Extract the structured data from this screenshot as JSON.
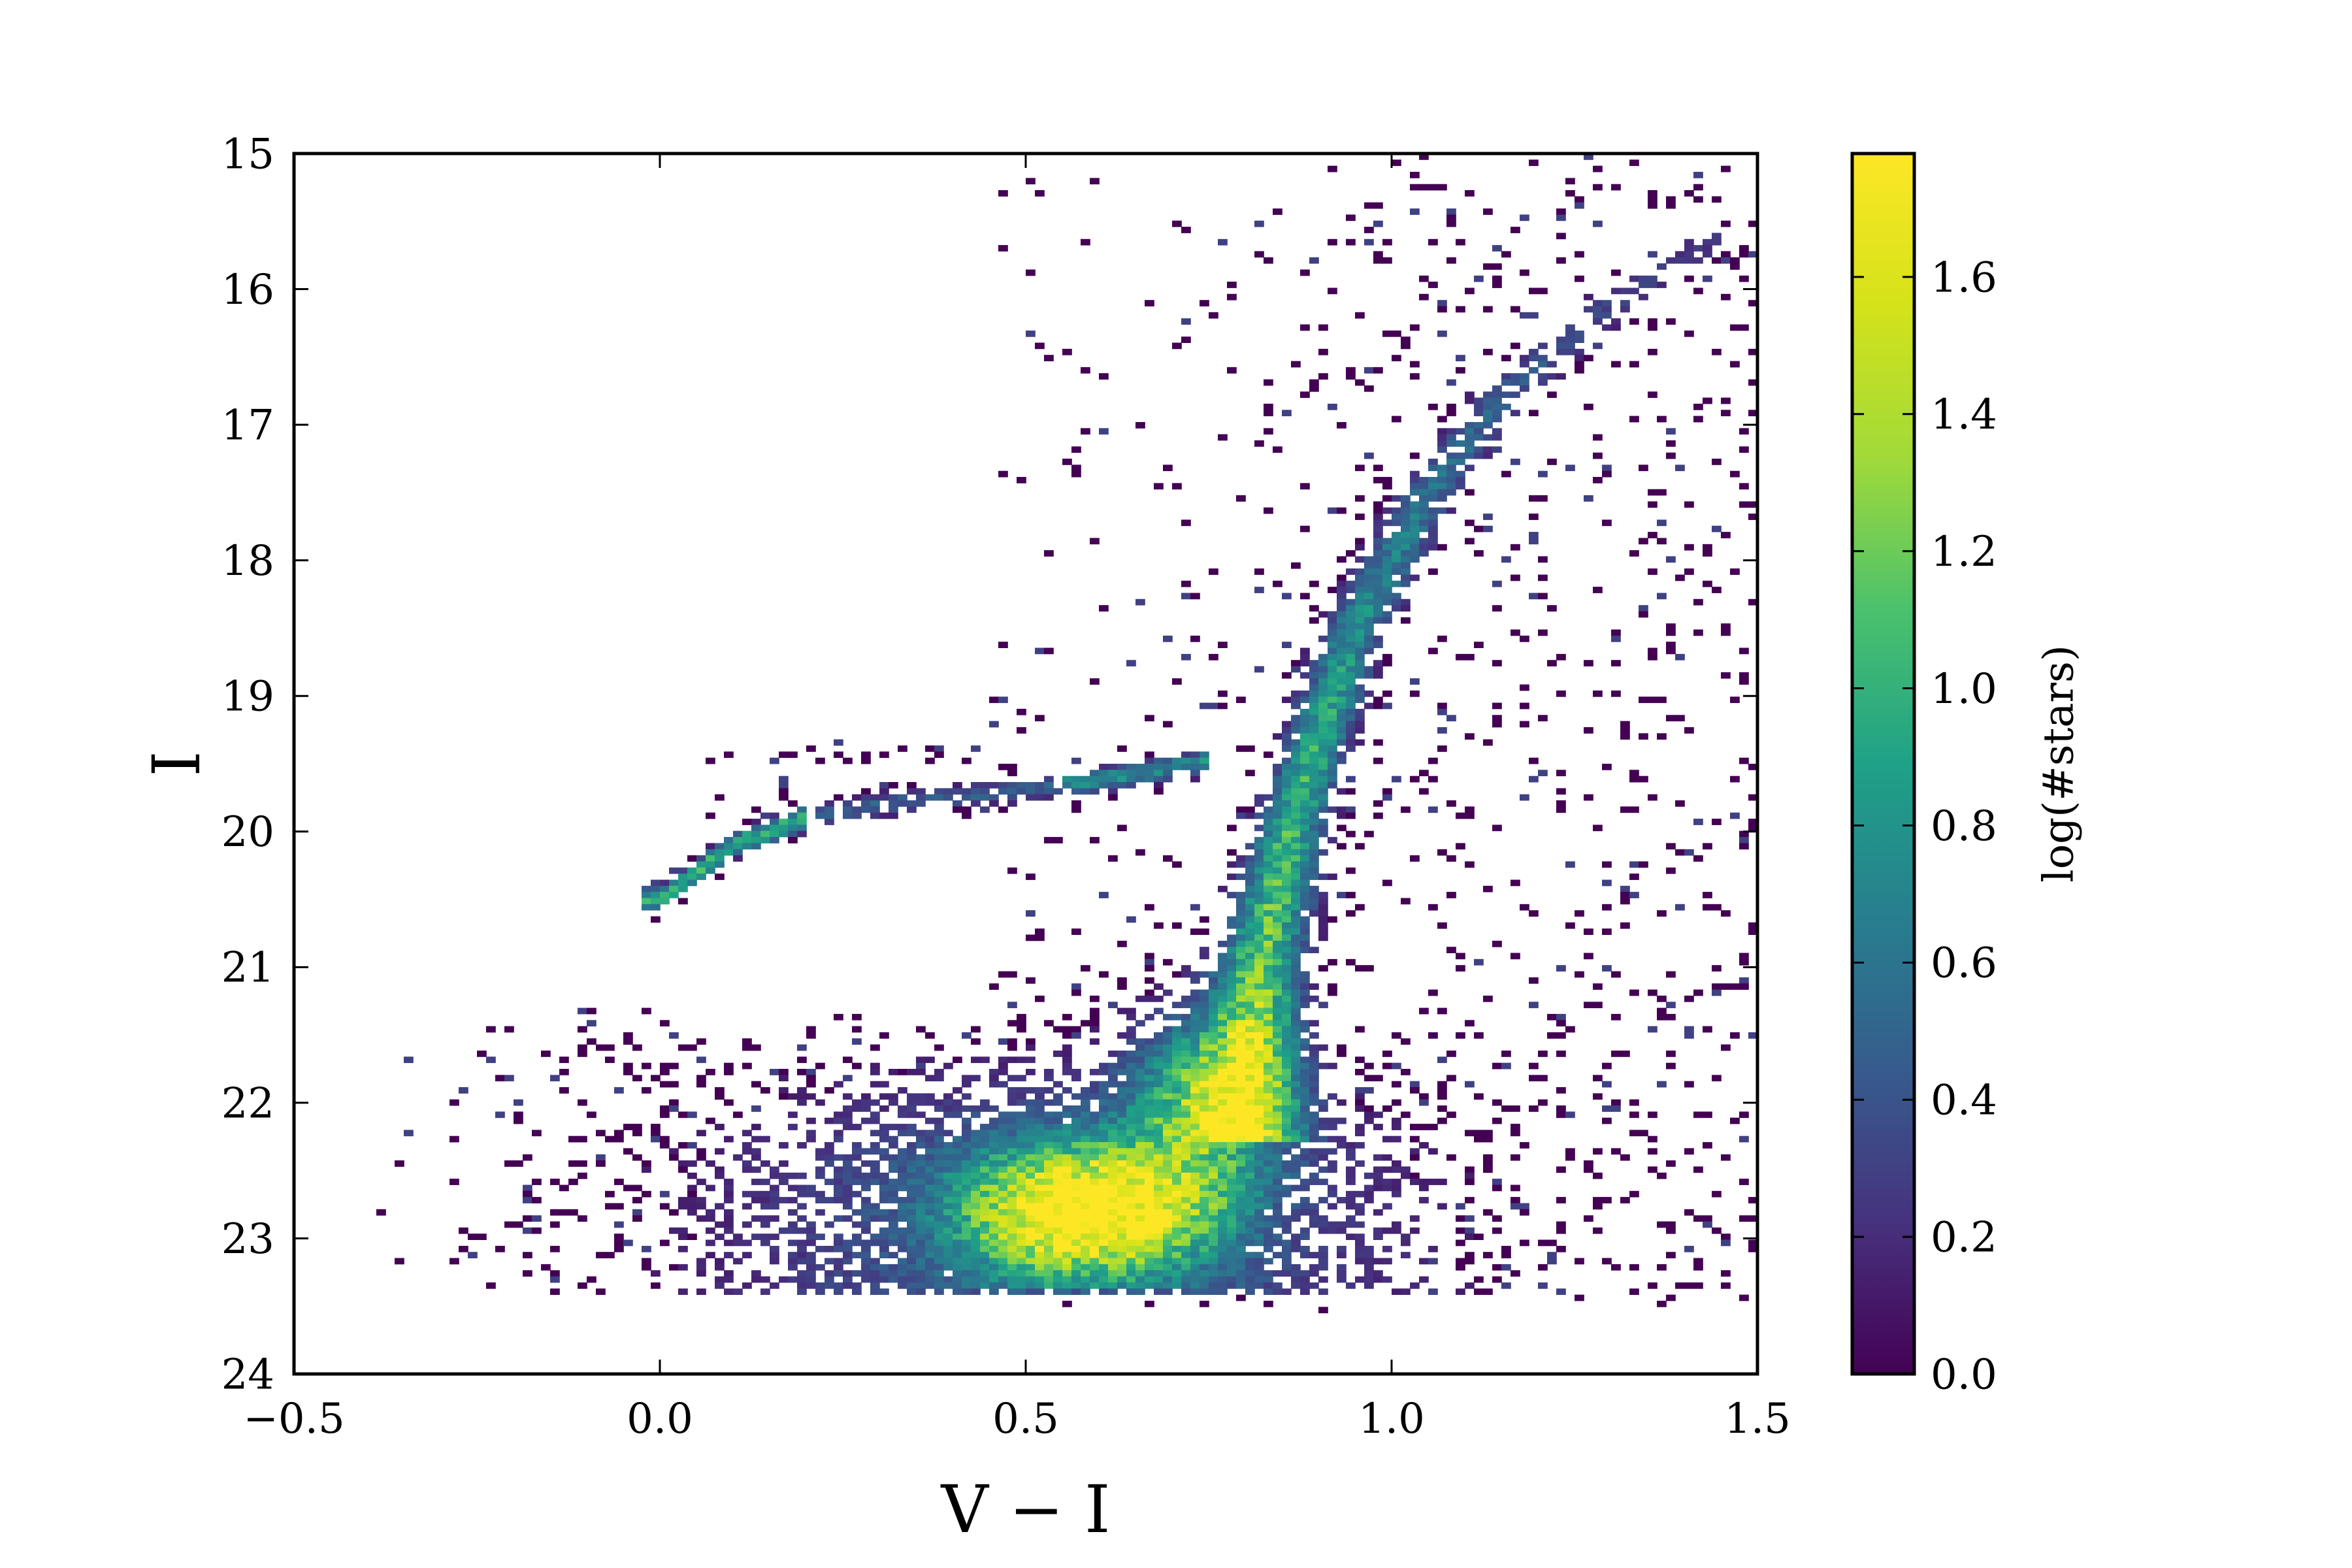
{
  "chart_data": {
    "type": "heatmap",
    "title": "",
    "xlabel": "V − I",
    "ylabel": "I",
    "xlim": [
      -0.5,
      1.5
    ],
    "ylim": [
      24,
      15
    ],
    "y_inverted": true,
    "grid": false,
    "x_ticks": [
      -0.5,
      0.0,
      0.5,
      1.0,
      1.5
    ],
    "x_tick_labels": [
      "−0.5",
      "0.0",
      "0.5",
      "1.0",
      "1.5"
    ],
    "y_ticks": [
      15,
      16,
      17,
      18,
      19,
      20,
      21,
      22,
      23,
      24
    ],
    "y_tick_labels": [
      "15",
      "16",
      "17",
      "18",
      "19",
      "20",
      "21",
      "22",
      "23",
      "24"
    ],
    "colorbar": {
      "label": "log(#stars)",
      "colormap": "viridis",
      "range": [
        0.0,
        1.78
      ],
      "ticks": [
        0.0,
        0.2,
        0.4,
        0.6,
        0.8,
        1.0,
        1.2,
        1.4,
        1.6
      ],
      "tick_labels": [
        "0.0",
        "0.2",
        "0.4",
        "0.6",
        "0.8",
        "1.0",
        "1.2",
        "1.4",
        "1.6"
      ]
    },
    "features": {
      "main_sequence_peak": {
        "color_VI": 0.58,
        "mag_I": 22.8,
        "log_count": 1.75
      },
      "main_sequence_turnoff": {
        "color_VI": 0.8,
        "mag_I": 21.5,
        "log_count": 1.2
      },
      "red_giant_branch": [
        [
          0.82,
          21.0
        ],
        [
          0.86,
          20.0
        ],
        [
          0.9,
          19.3
        ],
        [
          0.95,
          18.5
        ],
        [
          1.05,
          17.5
        ],
        [
          1.15,
          16.8
        ],
        [
          1.3,
          16.1
        ],
        [
          1.45,
          15.6
        ]
      ],
      "horizontal_branch": [
        [
          0.0,
          20.5
        ],
        [
          0.05,
          20.3
        ],
        [
          0.1,
          20.1
        ],
        [
          0.2,
          19.9
        ],
        [
          0.3,
          19.8
        ],
        [
          0.45,
          19.72
        ],
        [
          0.6,
          19.62
        ],
        [
          0.75,
          19.48
        ]
      ]
    }
  }
}
